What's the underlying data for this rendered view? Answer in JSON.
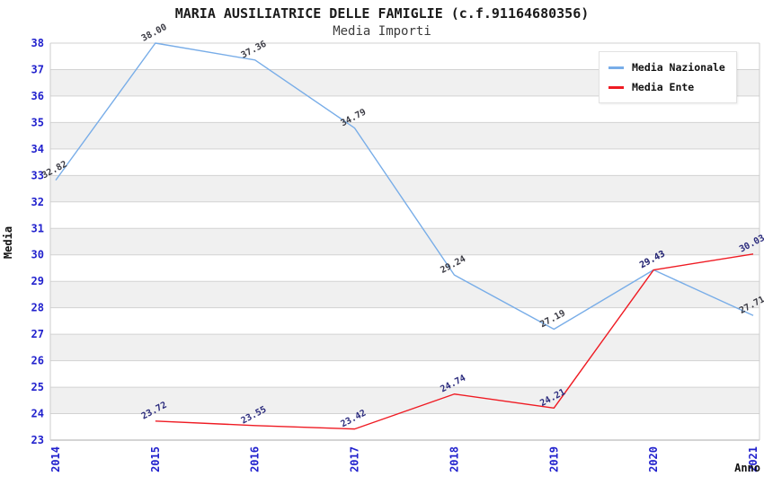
{
  "title": "MARIA AUSILIATRICE DELLE FAMIGLIE (c.f.91164680356)",
  "subtitle": "Media Importi",
  "y_axis_label": "Media",
  "x_axis_label": "Anno",
  "colors": {
    "tick_label": "#2121cd",
    "grid": "#d2d2d2",
    "axis_line": "#aaaaaa",
    "border": "#cccccc",
    "band_gray": "#f0f0f0",
    "band_white": "#ffffff"
  },
  "legend": {
    "items": [
      {
        "label": "Media Nazionale",
        "color": "#78ade8"
      },
      {
        "label": "Media Ente",
        "color": "#ef1b23"
      }
    ]
  },
  "chart_data": {
    "type": "line",
    "title": "MARIA AUSILIATRICE DELLE FAMIGLIE (c.f.91164680356)",
    "subtitle": "Media Importi",
    "xlabel": "Anno",
    "ylabel": "Media",
    "x": [
      2014,
      2015,
      2016,
      2017,
      2018,
      2019,
      2020,
      2021
    ],
    "ylim": [
      23,
      38
    ],
    "y_tick_step": 1,
    "grid": true,
    "banded_background": true,
    "legend_position": "top-right",
    "series": [
      {
        "name": "Media Nazionale",
        "color": "#78ade8",
        "label_color": "#3b3b44",
        "x": [
          2014,
          2015,
          2016,
          2017,
          2018,
          2019,
          2020,
          2021
        ],
        "values": [
          32.82,
          38.0,
          37.36,
          34.79,
          29.24,
          27.19,
          29.43,
          27.71
        ]
      },
      {
        "name": "Media Ente",
        "color": "#ef1b23",
        "label_color": "#2b2b7d",
        "x": [
          2015,
          2016,
          2017,
          2018,
          2019,
          2020,
          2021
        ],
        "values": [
          23.72,
          23.55,
          23.42,
          24.74,
          24.21,
          29.43,
          30.03
        ]
      }
    ]
  }
}
